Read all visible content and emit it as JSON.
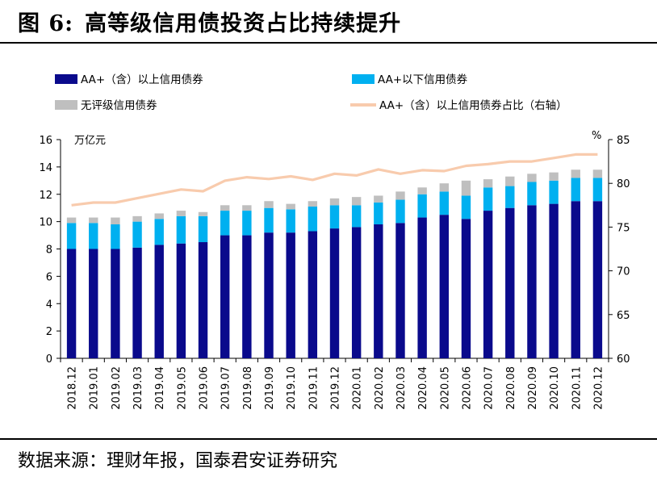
{
  "page": {
    "title_prefix": "图 6:",
    "title": "高等级信用债投资占比持续提升",
    "source": "数据来源：理财年报，国泰君安证券研究"
  },
  "chart_data": {
    "type": "bar",
    "stacked": true,
    "categories": [
      "2018.12",
      "2019.01",
      "2019.02",
      "2019.03",
      "2019.04",
      "2019.05",
      "2019.06",
      "2019.07",
      "2019.08",
      "2019.09",
      "2019.10",
      "2019.11",
      "2019.12",
      "2020.01",
      "2020.02",
      "2020.03",
      "2020.04",
      "2020.05",
      "2020.06",
      "2020.07",
      "2020.08",
      "2020.09",
      "2020.10",
      "2020.11",
      "2020.12"
    ],
    "series": [
      {
        "name": "AA+（含）以上信用债券",
        "kind": "bar",
        "axis": "left",
        "color": "#0a0a8c",
        "values": [
          8.0,
          8.0,
          8.0,
          8.1,
          8.3,
          8.4,
          8.5,
          9.0,
          9.0,
          9.2,
          9.2,
          9.3,
          9.5,
          9.6,
          9.8,
          9.9,
          10.3,
          10.5,
          10.2,
          10.8,
          11.0,
          11.2,
          11.3,
          11.5,
          11.5
        ]
      },
      {
        "name": "AA+以下信用债券",
        "kind": "bar",
        "axis": "left",
        "color": "#00b0f0",
        "values": [
          1.9,
          1.9,
          1.8,
          1.9,
          1.9,
          2.0,
          1.9,
          1.8,
          1.8,
          1.8,
          1.7,
          1.8,
          1.7,
          1.6,
          1.6,
          1.7,
          1.7,
          1.7,
          1.7,
          1.7,
          1.6,
          1.7,
          1.7,
          1.7,
          1.7
        ]
      },
      {
        "name": "无评级信用债券",
        "kind": "bar",
        "axis": "left",
        "color": "#bfbfbf",
        "values": [
          0.4,
          0.4,
          0.5,
          0.4,
          0.4,
          0.4,
          0.3,
          0.4,
          0.4,
          0.5,
          0.4,
          0.4,
          0.5,
          0.6,
          0.5,
          0.6,
          0.5,
          0.6,
          1.1,
          0.6,
          0.7,
          0.6,
          0.6,
          0.6,
          0.6
        ]
      },
      {
        "name": "AA+（含）以上信用债券占比（右轴）",
        "kind": "line",
        "axis": "right",
        "color": "#f8cbad",
        "values": [
          77.5,
          77.8,
          77.8,
          78.3,
          78.8,
          79.3,
          79.1,
          80.3,
          80.7,
          80.5,
          80.8,
          80.4,
          81.1,
          80.9,
          81.6,
          81.1,
          81.5,
          81.4,
          82.0,
          82.2,
          82.5,
          82.5,
          82.9,
          83.3,
          83.3
        ]
      }
    ],
    "left_axis": {
      "unit_label": "万亿元",
      "ylim": [
        0,
        16
      ],
      "ticks": [
        "0",
        "2",
        "4",
        "6",
        "8",
        "10",
        "12",
        "14",
        "16"
      ]
    },
    "right_axis": {
      "unit_label": "%",
      "ylim": [
        60,
        85
      ],
      "ticks": [
        "60",
        "65",
        "70",
        "75",
        "80",
        "85"
      ]
    },
    "grid": false,
    "legend_position": "top"
  }
}
